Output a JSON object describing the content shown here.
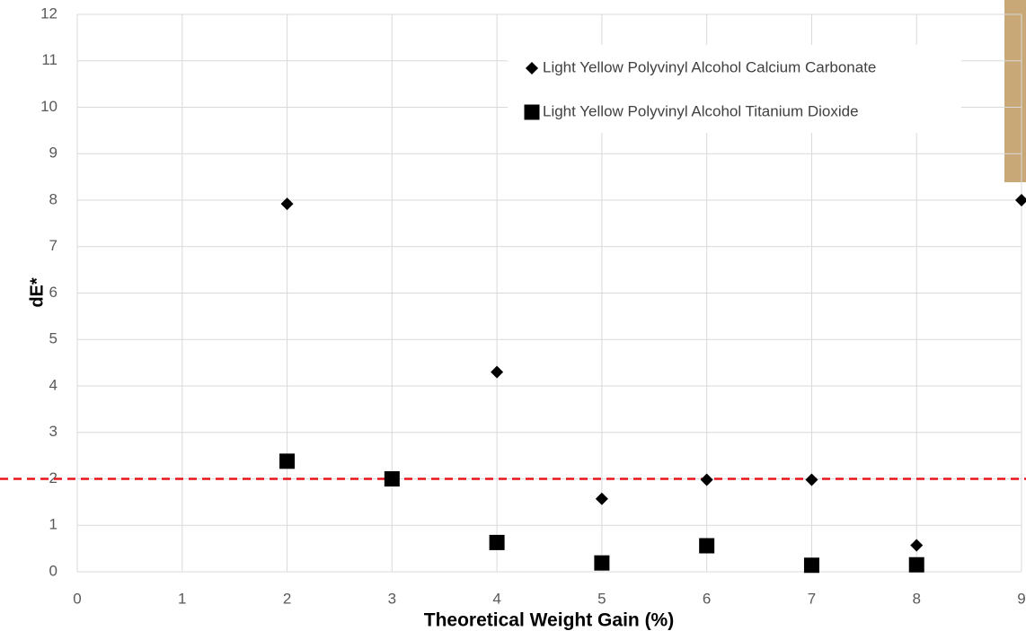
{
  "chart_data": {
    "type": "scatter",
    "x_label": "Theoretical Weight Gain (%)",
    "y_label": "dE*",
    "xlim": [
      0,
      9
    ],
    "xticks": [
      0,
      1,
      2,
      3,
      4,
      5,
      6,
      7,
      8,
      9
    ],
    "ylim": [
      0,
      12
    ],
    "yticks": [
      0,
      1,
      2,
      3,
      4,
      5,
      6,
      7,
      8,
      9,
      10,
      11,
      12
    ],
    "grid": true,
    "legend": "upper right",
    "reference_line": {
      "value": 2,
      "color": "#e8141b"
    },
    "series": [
      {
        "name": "Light Yellow Polyvinyl Alcohol Calcium Carbonate",
        "color": "#000000",
        "marker": "diamond",
        "x": [
          2,
          4,
          5,
          6,
          7,
          8,
          9
        ],
        "values": [
          7.92,
          4.3,
          1.57,
          1.98,
          1.98,
          0.57,
          8
        ]
      },
      {
        "name": "Light Yellow Polyvinyl Alcohol Titanium Dioxide",
        "color": "#000000",
        "marker": "square",
        "x": [
          2,
          3,
          4,
          5,
          6,
          7,
          8
        ],
        "values": [
          2.38,
          2.0,
          0.63,
          0.19,
          0.56,
          0.14,
          0.15
        ]
      }
    ]
  }
}
